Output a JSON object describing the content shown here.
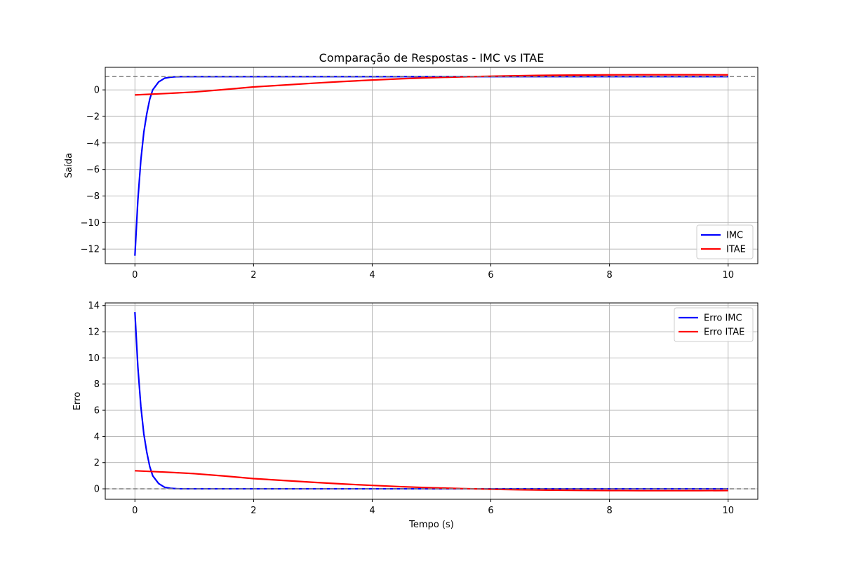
{
  "chart_data": [
    {
      "type": "line",
      "title": "Comparação de Respostas - IMC vs ITAE",
      "xlabel": "",
      "ylabel": "Saída",
      "xlim": [
        -0.5,
        10.5
      ],
      "ylim": [
        -13.1,
        1.7
      ],
      "xticks": [
        0,
        2,
        4,
        6,
        8,
        10
      ],
      "yticks": [
        -12,
        -10,
        -8,
        -6,
        -4,
        -2,
        0
      ],
      "xtick_labels": [
        "0",
        "2",
        "4",
        "6",
        "8",
        "10"
      ],
      "ytick_labels": [
        "−12",
        "−10",
        "−8",
        "−6",
        "−4",
        "−2",
        "0"
      ],
      "grid": true,
      "legend_position": "lower-right",
      "reference_line": {
        "y": 1,
        "color": "#808080",
        "style": "dashed"
      },
      "series": [
        {
          "name": "IMC",
          "color": "#0000ff",
          "x": [
            0,
            0.05,
            0.1,
            0.15,
            0.2,
            0.25,
            0.3,
            0.4,
            0.5,
            0.6,
            0.7,
            0.8,
            1,
            1.5,
            2,
            3,
            4,
            5,
            6,
            7,
            8,
            9,
            10
          ],
          "y": [
            -12.5,
            -8.3,
            -5.3,
            -3.2,
            -1.8,
            -0.7,
            0.0,
            0.6,
            0.88,
            0.96,
            0.99,
            1.0,
            1.0,
            1.0,
            1.0,
            1.0,
            1.0,
            1.0,
            1.0,
            1.0,
            1.0,
            1.0,
            1.0
          ]
        },
        {
          "name": "ITAE",
          "color": "#ff0000",
          "x": [
            0,
            0.5,
            1,
            1.5,
            2,
            2.5,
            3,
            3.5,
            4,
            4.5,
            5,
            5.5,
            6,
            6.5,
            7,
            7.5,
            8,
            8.5,
            9,
            9.5,
            10
          ],
          "y": [
            -0.38,
            -0.28,
            -0.16,
            0.02,
            0.22,
            0.36,
            0.5,
            0.63,
            0.74,
            0.84,
            0.92,
            0.98,
            1.03,
            1.07,
            1.1,
            1.12,
            1.13,
            1.14,
            1.14,
            1.14,
            1.13
          ]
        }
      ]
    },
    {
      "type": "line",
      "title": "",
      "xlabel": "Tempo (s)",
      "ylabel": "Erro",
      "xlim": [
        -0.5,
        10.5
      ],
      "ylim": [
        -0.8,
        14.2
      ],
      "xticks": [
        0,
        2,
        4,
        6,
        8,
        10
      ],
      "yticks": [
        0,
        2,
        4,
        6,
        8,
        10,
        12,
        14
      ],
      "xtick_labels": [
        "0",
        "2",
        "4",
        "6",
        "8",
        "10"
      ],
      "ytick_labels": [
        "0",
        "2",
        "4",
        "6",
        "8",
        "10",
        "12",
        "14"
      ],
      "grid": true,
      "legend_position": "upper-right",
      "reference_line": {
        "y": 0,
        "color": "#808080",
        "style": "dashed"
      },
      "series": [
        {
          "name": "Erro IMC",
          "color": "#0000ff",
          "x": [
            0,
            0.05,
            0.1,
            0.15,
            0.2,
            0.25,
            0.3,
            0.4,
            0.5,
            0.6,
            0.7,
            0.8,
            1,
            1.5,
            2,
            3,
            4,
            5,
            6,
            7,
            8,
            9,
            10
          ],
          "y": [
            13.5,
            9.3,
            6.3,
            4.2,
            2.8,
            1.7,
            1.0,
            0.4,
            0.12,
            0.04,
            0.01,
            0.0,
            0.0,
            0.0,
            0.0,
            0.0,
            0.0,
            0.0,
            0.0,
            0.0,
            0.0,
            0.0,
            0.0
          ]
        },
        {
          "name": "Erro ITAE",
          "color": "#ff0000",
          "x": [
            0,
            0.5,
            1,
            1.5,
            2,
            2.5,
            3,
            3.5,
            4,
            4.5,
            5,
            5.5,
            6,
            6.5,
            7,
            7.5,
            8,
            8.5,
            9,
            9.5,
            10
          ],
          "y": [
            1.38,
            1.28,
            1.16,
            0.98,
            0.78,
            0.64,
            0.5,
            0.37,
            0.26,
            0.16,
            0.08,
            0.02,
            -0.03,
            -0.07,
            -0.1,
            -0.12,
            -0.13,
            -0.14,
            -0.14,
            -0.14,
            -0.13
          ]
        }
      ]
    }
  ]
}
